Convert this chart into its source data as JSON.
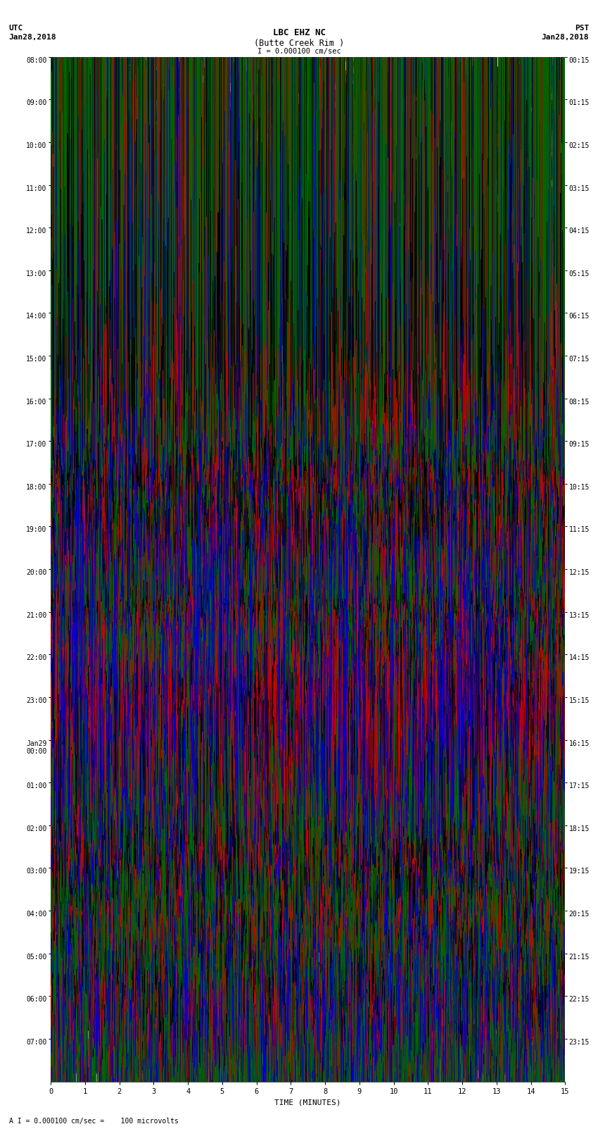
{
  "title_line1": "LBC EHZ NC",
  "title_line2": "(Butte Creek Rim )",
  "scale_label": "I = 0.000100 cm/sec",
  "left_label_top": "UTC",
  "left_label_date": "Jan28,2018",
  "right_label_top": "PST",
  "right_label_date": "Jan28,2018",
  "bottom_label": "TIME (MINUTES)",
  "bottom_note": "A I = 0.000100 cm/sec =    100 microvolts",
  "xlabel_ticks": [
    0,
    1,
    2,
    3,
    4,
    5,
    6,
    7,
    8,
    9,
    10,
    11,
    12,
    13,
    14,
    15
  ],
  "bg_color": "#ffffff",
  "trace_colors_list": [
    "#000000",
    "#cc0000",
    "#0000cc",
    "#006600"
  ],
  "fig_width": 8.5,
  "fig_height": 16.13,
  "utc_major": [
    "08:00",
    "09:00",
    "10:00",
    "11:00",
    "12:00",
    "13:00",
    "14:00",
    "15:00",
    "16:00",
    "17:00",
    "18:00",
    "19:00",
    "20:00",
    "21:00",
    "22:00",
    "23:00",
    "Jan29\n00:00",
    "01:00",
    "02:00",
    "03:00",
    "04:00",
    "05:00",
    "06:00",
    "07:00"
  ],
  "pst_major": [
    "00:15",
    "01:15",
    "02:15",
    "03:15",
    "04:15",
    "05:15",
    "06:15",
    "07:15",
    "08:15",
    "09:15",
    "10:15",
    "11:15",
    "12:15",
    "13:15",
    "14:15",
    "15:15",
    "16:15",
    "17:15",
    "18:15",
    "19:15",
    "20:15",
    "21:15",
    "22:15",
    "23:15"
  ],
  "traces_per_hour": 4,
  "N_points": 3000
}
